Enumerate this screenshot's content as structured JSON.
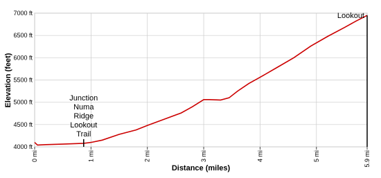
{
  "chart_data": {
    "type": "line",
    "x_label": "Distance (miles)",
    "y_label": "Elevation (feet)",
    "x": [
      0,
      0.05,
      0.2,
      0.5,
      0.87,
      1.0,
      1.2,
      1.5,
      1.8,
      2.0,
      2.3,
      2.6,
      2.8,
      3.0,
      3.1,
      3.3,
      3.45,
      3.6,
      3.8,
      4.0,
      4.3,
      4.6,
      4.9,
      5.2,
      5.5,
      5.7,
      5.9
    ],
    "series": [
      {
        "color": "#cc0000",
        "values": [
          4100,
          4040,
          4050,
          4060,
          4080,
          4100,
          4150,
          4280,
          4380,
          4480,
          4620,
          4760,
          4900,
          5060,
          5060,
          5050,
          5100,
          5250,
          5420,
          5560,
          5780,
          6000,
          6260,
          6480,
          6680,
          6820,
          6950
        ]
      }
    ],
    "xlim": [
      0,
      5.9
    ],
    "ylim": [
      4000,
      7000
    ],
    "xticks": [
      {
        "value": 0,
        "label": "0 mi"
      },
      {
        "value": 1,
        "label": "1 mi"
      },
      {
        "value": 2,
        "label": "2 mi"
      },
      {
        "value": 3,
        "label": "3 mi"
      },
      {
        "value": 4,
        "label": "4 mi"
      },
      {
        "value": 5,
        "label": "5 mi"
      },
      {
        "value": 5.9,
        "label": "5.9 mi"
      }
    ],
    "yticks": [
      {
        "value": 4000,
        "label": "4000 ft"
      },
      {
        "value": 4500,
        "label": "4500 ft"
      },
      {
        "value": 5000,
        "label": "5000 ft"
      },
      {
        "value": 5500,
        "label": "5500 ft"
      },
      {
        "value": 6000,
        "label": "6000 ft"
      },
      {
        "value": 6500,
        "label": "6500 ft"
      },
      {
        "value": 7000,
        "label": "7000 ft"
      }
    ],
    "grid": true,
    "annotations": [
      {
        "lines": [
          "Junction",
          "Numa",
          "Ridge",
          "Lookout",
          "Trail"
        ],
        "x": 0.87,
        "y": 4080
      },
      {
        "lines": [
          "Lookout"
        ],
        "x": 5.9,
        "y": 6950
      }
    ]
  }
}
